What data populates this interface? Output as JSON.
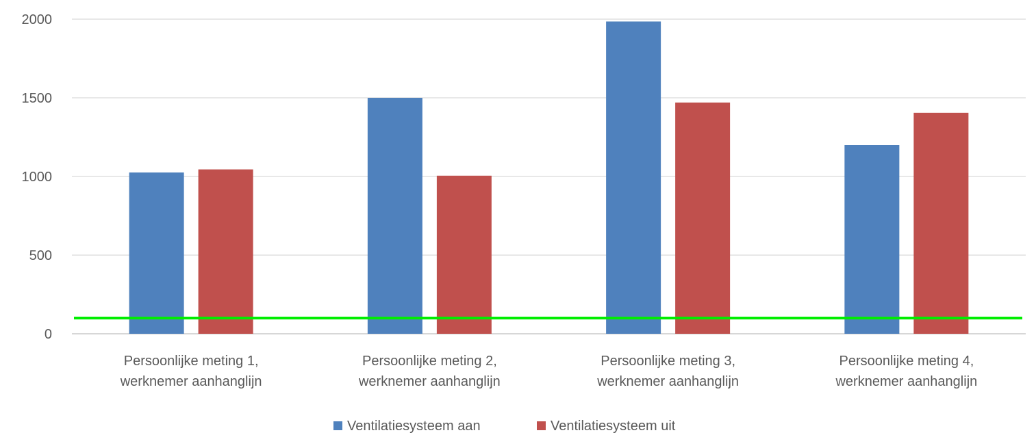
{
  "chart_data": {
    "type": "bar",
    "categories": [
      [
        "Persoonlijke meting 1,",
        "werknemer aanhanglijn"
      ],
      [
        "Persoonlijke meting 2,",
        "werknemer aanhanglijn"
      ],
      [
        "Persoonlijke meting 3,",
        "werknemer aanhanglijn"
      ],
      [
        "Persoonlijke meting 4,",
        "werknemer aanhanglijn"
      ]
    ],
    "series": [
      {
        "name": "Ventilatiesysteem aan",
        "color": "#4f81bd",
        "values": [
          1025,
          1500,
          1985,
          1200
        ]
      },
      {
        "name": "Ventilatiesysteem uit",
        "color": "#c0504d",
        "values": [
          1045,
          1005,
          1470,
          1405
        ]
      }
    ],
    "reference_line": {
      "value": 100,
      "color": "#00ee00"
    },
    "yticks": [
      0,
      500,
      1000,
      1500,
      2000
    ],
    "ylim": [
      0,
      2000
    ],
    "grid": true,
    "legend_position": "bottom",
    "title": "",
    "xlabel": "",
    "ylabel": ""
  }
}
